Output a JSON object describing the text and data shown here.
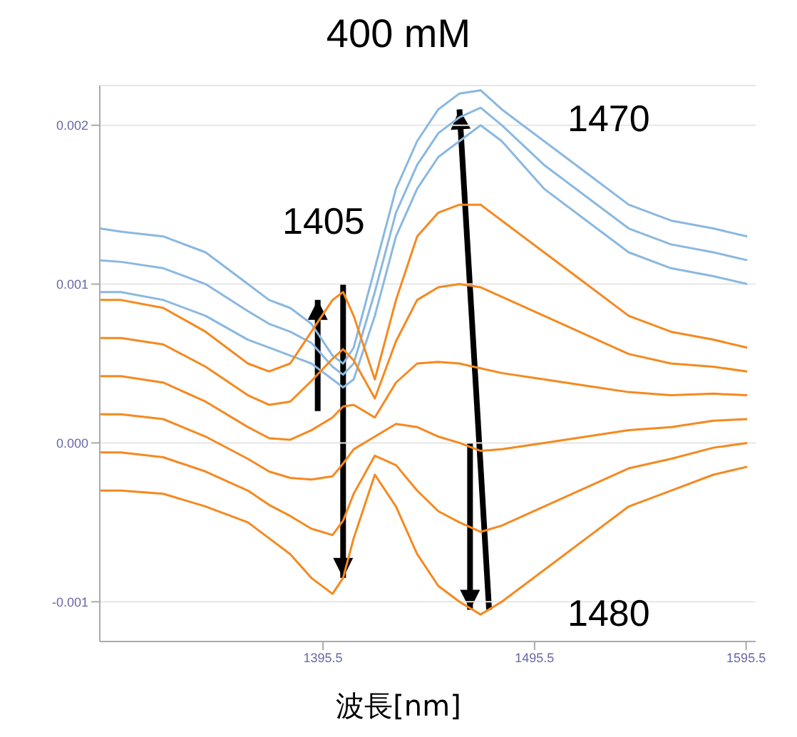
{
  "chart_data": {
    "type": "line",
    "title": "400 mM",
    "xlabel": "波長[nm]",
    "x": [
      1290,
      1300,
      1320,
      1340,
      1360,
      1370,
      1380,
      1390,
      1400,
      1405,
      1410,
      1420,
      1430,
      1440,
      1450,
      1460,
      1470,
      1480,
      1500,
      1520,
      1540,
      1560,
      1580,
      1596
    ],
    "series": [
      {
        "color": "#8ab8e0",
        "values": [
          0.00135,
          0.00133,
          0.0013,
          0.0012,
          0.001,
          0.0009,
          0.00085,
          0.00075,
          0.00055,
          0.0005,
          0.0006,
          0.0011,
          0.0016,
          0.0019,
          0.0021,
          0.0022,
          0.00222,
          0.0021,
          0.0019,
          0.0017,
          0.0015,
          0.0014,
          0.00135,
          0.0013
        ]
      },
      {
        "color": "#8ab8e0",
        "values": [
          0.00115,
          0.00114,
          0.0011,
          0.001,
          0.00083,
          0.00075,
          0.0007,
          0.00063,
          0.00048,
          0.00043,
          0.0005,
          0.00095,
          0.00145,
          0.00175,
          0.00195,
          0.00205,
          0.00211,
          0.002,
          0.00175,
          0.00155,
          0.00135,
          0.00125,
          0.0012,
          0.00115
        ]
      },
      {
        "color": "#8ab8e0",
        "values": [
          0.00095,
          0.00095,
          0.0009,
          0.0008,
          0.00065,
          0.0006,
          0.00055,
          0.0005,
          0.0004,
          0.00035,
          0.0004,
          0.0008,
          0.0013,
          0.0016,
          0.0018,
          0.0019,
          0.002,
          0.0019,
          0.0016,
          0.0014,
          0.0012,
          0.0011,
          0.00105,
          0.001
        ]
      },
      {
        "color": "#f5891f",
        "values": [
          0.0009,
          0.0009,
          0.00085,
          0.0007,
          0.0005,
          0.00045,
          0.0005,
          0.0007,
          0.0009,
          0.00095,
          0.0008,
          0.0004,
          0.0009,
          0.0013,
          0.00145,
          0.0015,
          0.0015,
          0.0014,
          0.0012,
          0.001,
          0.0008,
          0.0007,
          0.00065,
          0.0006
        ]
      },
      {
        "color": "#f5891f",
        "values": [
          0.00066,
          0.00066,
          0.00062,
          0.00048,
          0.0003,
          0.00024,
          0.00026,
          0.00039,
          0.00053,
          0.00059,
          0.00052,
          0.00028,
          0.00064,
          0.0009,
          0.00098,
          0.001,
          0.00098,
          0.00092,
          0.0008,
          0.00068,
          0.00056,
          0.0005,
          0.00048,
          0.00045
        ]
      },
      {
        "color": "#f5891f",
        "values": [
          0.00042,
          0.00042,
          0.00038,
          0.00026,
          0.0001,
          3e-05,
          2e-05,
          8e-05,
          0.00016,
          0.00023,
          0.00024,
          0.00016,
          0.00038,
          0.0005,
          0.00051,
          0.0005,
          0.00047,
          0.00044,
          0.0004,
          0.00036,
          0.00032,
          0.0003,
          0.00031,
          0.0003
        ]
      },
      {
        "color": "#f5891f",
        "values": [
          0.00018,
          0.00018,
          0.00015,
          4e-05,
          -0.0001,
          -0.00018,
          -0.00022,
          -0.00023,
          -0.00021,
          -0.00013,
          -4e-05,
          4e-05,
          0.00012,
          0.0001,
          4e-05,
          0,
          -5e-05,
          -4e-05,
          0,
          4e-05,
          8e-05,
          0.0001,
          0.00014,
          0.00015
        ]
      },
      {
        "color": "#f5891f",
        "values": [
          -6e-05,
          -6e-05,
          -9e-05,
          -0.00018,
          -0.0003,
          -0.00039,
          -0.00046,
          -0.00054,
          -0.00058,
          -0.00049,
          -0.00032,
          -8e-05,
          -0.00014,
          -0.0003,
          -0.00043,
          -0.0005,
          -0.00056,
          -0.00052,
          -0.0004,
          -0.00028,
          -0.00016,
          -0.0001,
          -3e-05,
          0
        ]
      },
      {
        "color": "#f5891f",
        "values": [
          -0.0003,
          -0.0003,
          -0.00032,
          -0.0004,
          -0.0005,
          -0.0006,
          -0.0007,
          -0.00085,
          -0.00095,
          -0.00085,
          -0.0006,
          -0.0002,
          -0.0004,
          -0.0007,
          -0.0009,
          -0.001,
          -0.00108,
          -0.001,
          -0.0008,
          -0.0006,
          -0.0004,
          -0.0003,
          -0.0002,
          -0.00015
        ]
      }
    ],
    "xlim": [
      1290,
      1600
    ],
    "xticks": [
      1395.5,
      1495.5,
      1595.5
    ],
    "ylim": [
      -0.00125,
      0.00225
    ],
    "yticks": [
      {
        "value": -0.001,
        "label": "-0.001"
      },
      {
        "value": 0,
        "label": "0.000"
      },
      {
        "value": 0.001,
        "label": "0.001"
      },
      {
        "value": 0.002,
        "label": "0.002"
      }
    ],
    "grid": "y",
    "legend": false,
    "marker": "none",
    "line_style": "solid",
    "annotations": [
      "1405",
      "1470",
      "1480"
    ]
  }
}
